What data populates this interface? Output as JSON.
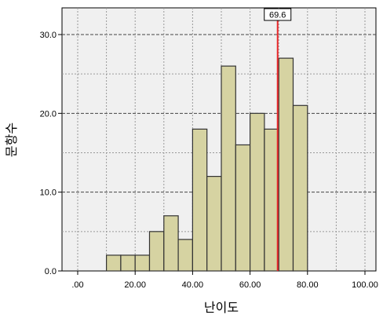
{
  "chart_data": {
    "type": "bar",
    "title": "",
    "xlabel": "난이도",
    "ylabel": "문항수",
    "xlim": [
      0,
      100
    ],
    "ylim": [
      0,
      30
    ],
    "x_ticks": [
      ".00",
      "20.00",
      "40.00",
      "60.00",
      "80.00",
      "100.00"
    ],
    "y_ticks": [
      "0.0",
      "10.0",
      "20.0",
      "30.0"
    ],
    "grid": true,
    "bin_width": 5,
    "bins": [
      {
        "start": 10,
        "end": 15,
        "count": 2
      },
      {
        "start": 15,
        "end": 20,
        "count": 2
      },
      {
        "start": 20,
        "end": 25,
        "count": 2
      },
      {
        "start": 25,
        "end": 30,
        "count": 5
      },
      {
        "start": 30,
        "end": 35,
        "count": 7
      },
      {
        "start": 35,
        "end": 40,
        "count": 4
      },
      {
        "start": 40,
        "end": 45,
        "count": 18
      },
      {
        "start": 45,
        "end": 50,
        "count": 12
      },
      {
        "start": 50,
        "end": 55,
        "count": 26
      },
      {
        "start": 55,
        "end": 60,
        "count": 16
      },
      {
        "start": 60,
        "end": 65,
        "count": 20
      },
      {
        "start": 65,
        "end": 70,
        "count": 18
      },
      {
        "start": 70,
        "end": 75,
        "count": 27
      },
      {
        "start": 75,
        "end": 80,
        "count": 21
      }
    ],
    "reference_line": {
      "value": 69.6,
      "label": "69.6",
      "color": "#e8282b"
    },
    "bar_color": "#d6d3a2",
    "bar_edge_color": "#333333"
  }
}
